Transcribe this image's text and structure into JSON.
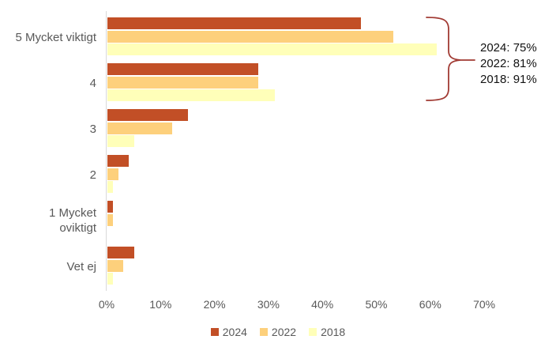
{
  "chart_data": {
    "type": "bar",
    "orientation": "horizontal",
    "title": "",
    "xlabel": "",
    "ylabel": "",
    "categories": [
      "5 Mycket viktigt",
      "4",
      "3",
      "2",
      "1 Mycket oviktigt",
      "Vet ej"
    ],
    "category_display_lines": [
      [
        "5 Mycket viktigt"
      ],
      [
        "4"
      ],
      [
        "3"
      ],
      [
        "2"
      ],
      [
        "1 Mycket",
        "oviktigt"
      ],
      [
        "Vet ej"
      ]
    ],
    "series": [
      {
        "name": "2024",
        "color": "#c24f26",
        "values": [
          47,
          28,
          15,
          4,
          1,
          5
        ]
      },
      {
        "name": "2022",
        "color": "#fdd07c",
        "values": [
          53,
          28,
          12,
          2,
          1,
          3
        ]
      },
      {
        "name": "2018",
        "color": "#ffffb9",
        "values": [
          61,
          31,
          5,
          1,
          0,
          1
        ]
      }
    ],
    "x_axis": {
      "tick_labels": [
        "0%",
        "10%",
        "20%",
        "30%",
        "40%",
        "50%",
        "60%",
        "70%"
      ],
      "min": 0,
      "max": 70,
      "unit": "%"
    },
    "grid": false,
    "legend_position": "bottom",
    "legend": [
      "2024",
      "2022",
      "2018"
    ]
  },
  "annotation": {
    "lines": [
      "2024: 75%",
      "2022: 81%",
      "2018: 91%"
    ],
    "brace_color": "#a13a33",
    "brace_categories": [
      "5 Mycket viktigt",
      "4"
    ]
  },
  "colors": {
    "axis_line": "#d9d9d9",
    "axis_text": "#595959",
    "annotation_text": "#121212",
    "background": "#ffffff"
  }
}
